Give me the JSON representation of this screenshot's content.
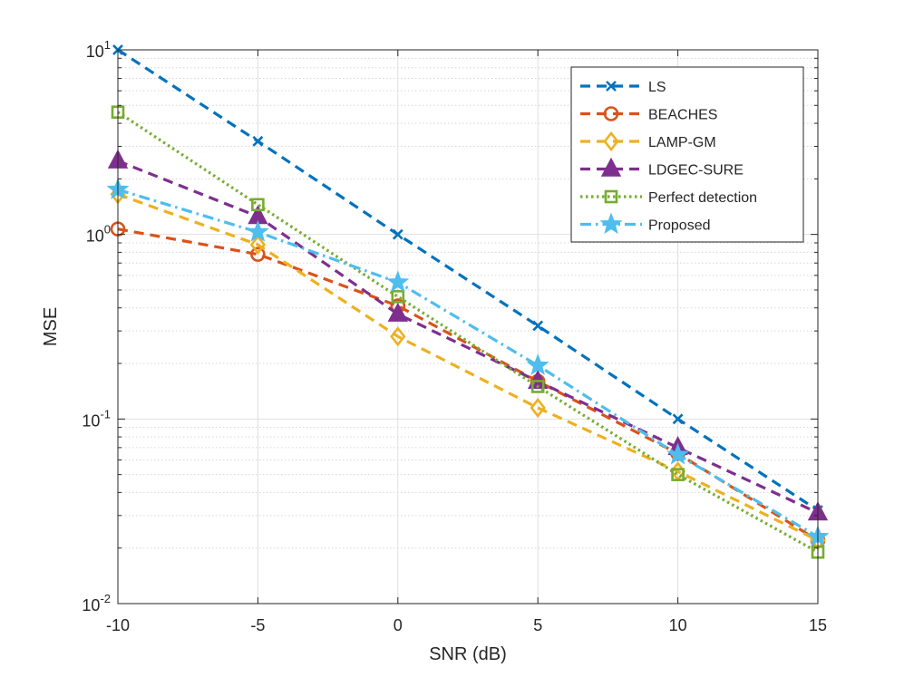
{
  "chart_data": {
    "type": "line",
    "xlabel": "SNR (dB)",
    "ylabel": "MSE",
    "x": [
      -10,
      -5,
      0,
      5,
      10,
      15
    ],
    "xlim": [
      -10,
      15
    ],
    "ylim": [
      0.01,
      10
    ],
    "yscale": "log",
    "grid": true,
    "legend_position": "top-right",
    "xticks": [
      "-10",
      "-5",
      "0",
      "5",
      "10",
      "15"
    ],
    "yticks": [
      {
        "base": "10",
        "exp": "1",
        "value": 10
      },
      {
        "base": "10",
        "exp": "0",
        "value": 1
      },
      {
        "base": "10",
        "exp": "-1",
        "value": 0.1
      },
      {
        "base": "10",
        "exp": "-2",
        "value": 0.01
      }
    ],
    "series": [
      {
        "name": "LS",
        "color": "#0072BD",
        "line": "dashed",
        "marker": "x",
        "values": [
          10.0,
          3.2,
          1.0,
          0.32,
          0.1,
          0.032
        ]
      },
      {
        "name": "BEACHES",
        "color": "#D95319",
        "line": "dashed",
        "marker": "circle",
        "values": [
          1.07,
          0.78,
          0.41,
          0.16,
          0.065,
          0.022
        ]
      },
      {
        "name": "LAMP-GM",
        "color": "#EDB120",
        "line": "dashed",
        "marker": "diamond",
        "values": [
          1.65,
          0.88,
          0.28,
          0.115,
          0.052,
          0.022
        ]
      },
      {
        "name": "LDGEC-SURE",
        "color": "#7E2F8E",
        "line": "dashed",
        "marker": "triangle",
        "values": [
          2.5,
          1.25,
          0.37,
          0.16,
          0.07,
          0.031
        ]
      },
      {
        "name": "Perfect detection",
        "color": "#77AC30",
        "line": "dotted",
        "marker": "square",
        "values": [
          4.6,
          1.45,
          0.46,
          0.15,
          0.05,
          0.019
        ]
      },
      {
        "name": "Proposed",
        "color": "#4DBEEE",
        "line": "dashdot",
        "marker": "star",
        "values": [
          1.75,
          1.03,
          0.55,
          0.195,
          0.064,
          0.023
        ]
      }
    ]
  }
}
